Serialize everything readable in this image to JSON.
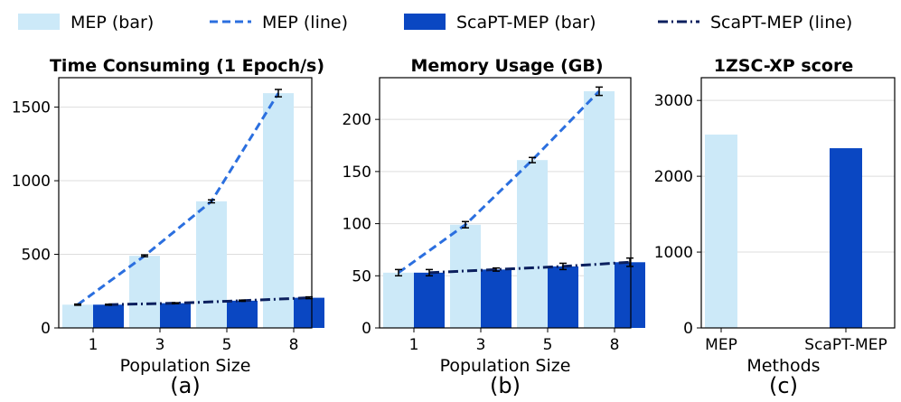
{
  "legend": [
    {
      "label": "MEP (bar)",
      "kind": "bar",
      "color": "#cce9f8"
    },
    {
      "label": "MEP (line)",
      "kind": "dash",
      "color": "#2b6fdf"
    },
    {
      "label": "ScaPT-MEP (bar)",
      "kind": "bar",
      "color": "#0a47c2"
    },
    {
      "label": "ScaPT-MEP (line)",
      "kind": "dashdot",
      "color": "#0b1f5e"
    }
  ],
  "colors": {
    "mep_bar": "#cce9f8",
    "mep_line": "#2b6fdf",
    "scapt_bar": "#0a47c2",
    "scapt_line": "#0b1f5e"
  },
  "chart_data": [
    {
      "type": "bar",
      "title": "Time Consuming (1 Epoch/s)",
      "xlabel": "Population Size",
      "ylabel": "",
      "sublabel": "(a)",
      "categories": [
        "1",
        "3",
        "5",
        "8"
      ],
      "ylim": [
        0,
        1700
      ],
      "yticks": [
        0,
        500,
        1000,
        1500
      ],
      "series": [
        {
          "name": "MEP",
          "values": [
            158,
            490,
            860,
            1595
          ],
          "errors": [
            4,
            6,
            10,
            25
          ]
        },
        {
          "name": "ScaPT-MEP",
          "values": [
            158,
            168,
            185,
            205
          ],
          "errors": [
            3,
            3,
            4,
            6
          ]
        }
      ]
    },
    {
      "type": "bar",
      "title": "Memory Usage (GB)",
      "xlabel": "Population Size",
      "ylabel": "",
      "sublabel": "(b)",
      "categories": [
        "1",
        "3",
        "5",
        "8"
      ],
      "ylim": [
        0,
        240
      ],
      "yticks": [
        0,
        50,
        100,
        150,
        200
      ],
      "series": [
        {
          "name": "MEP",
          "values": [
            53,
            99,
            161,
            227
          ],
          "errors": [
            3,
            3,
            2.5,
            4
          ]
        },
        {
          "name": "ScaPT-MEP",
          "values": [
            53,
            56,
            59,
            63
          ],
          "errors": [
            3,
            1.5,
            3,
            4
          ]
        }
      ]
    },
    {
      "type": "bar",
      "title": "1ZSC-XP score",
      "xlabel": "Methods",
      "ylabel": "",
      "sublabel": "(c)",
      "categories": [
        "MEP",
        "ScaPT-MEP"
      ],
      "ylim": [
        0,
        3300
      ],
      "yticks": [
        0,
        1000,
        2000,
        3000
      ],
      "series": [
        {
          "name": "score",
          "values": [
            2550,
            2370
          ]
        }
      ]
    }
  ]
}
